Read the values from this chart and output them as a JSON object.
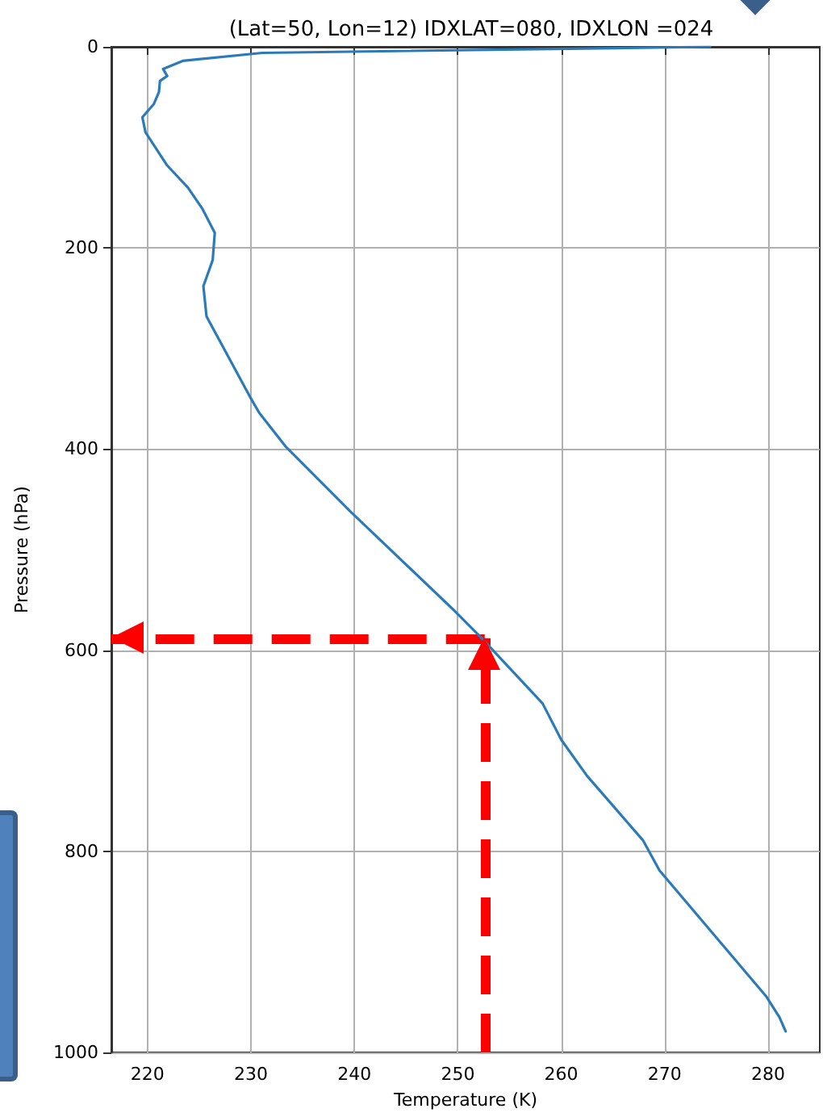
{
  "chart_data": {
    "type": "line",
    "title": "(Lat=50, Lon=12) IDXLAT=080, IDXLON =024",
    "xlabel": "Temperature (K)",
    "ylabel": "Pressure (hPa)",
    "x": [
      274.4,
      231.1,
      223.4,
      221.5,
      221.9,
      221.2,
      221.1,
      220.6,
      219.5,
      219.8,
      221.9,
      223.9,
      225.3,
      226.5,
      226.3,
      225.4,
      225.7,
      229.9,
      230.8,
      233.4,
      239.6,
      249.7,
      252.3,
      258.2,
      260,
      262.5,
      267.9,
      269.5,
      279.8,
      281.1,
      281.7
    ],
    "series": [
      {
        "color": "#2b7bba",
        "values": [
          0,
          6,
          14,
          22,
          29,
          34,
          45,
          57,
          70,
          85,
          118,
          140,
          161,
          185,
          212,
          238,
          268,
          348,
          364,
          398,
          462,
          561,
          588,
          653,
          689,
          725,
          789,
          819,
          944,
          965,
          979
        ]
      }
    ],
    "xlim": [
      216.5,
      285
    ],
    "xticks": [
      220,
      230,
      240,
      250,
      260,
      270,
      280
    ],
    "ylim": [
      1000,
      0
    ],
    "yticks": [
      0,
      200,
      400,
      600,
      800,
      1000
    ],
    "ref_lines": [
      {
        "axis": "x",
        "value": 252.6,
        "color": "#ff0000",
        "line_style": "dashed"
      },
      {
        "axis": "y",
        "value": 588,
        "color": "#ff0000",
        "line_style": "dashed"
      }
    ],
    "grid": true,
    "marker": "none",
    "line_style": "solid"
  }
}
